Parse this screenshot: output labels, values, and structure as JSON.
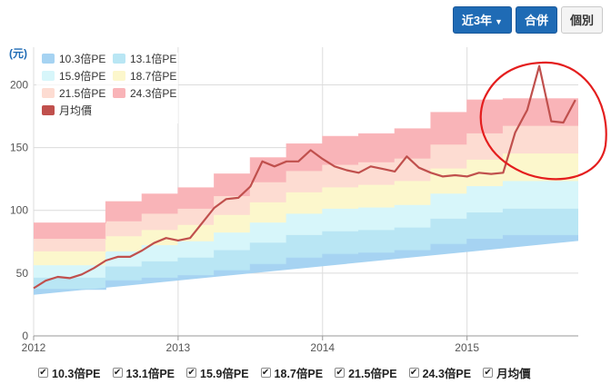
{
  "toolbar": {
    "range_label": "近3年",
    "consolidated_label": "合併",
    "individual_label": "個別"
  },
  "colors": {
    "pe_10_3": "#a6d3f2",
    "pe_13_1": "#b9e6f4",
    "pe_15_9": "#d7f6fa",
    "pe_18_7": "#fcf7cc",
    "pe_21_5": "#fddcd2",
    "pe_24_3": "#f9b4b8",
    "monthly_price": "#c0504d",
    "annotation": "#e41e1e"
  },
  "chart_data": {
    "type": "area",
    "ylabel": "(元)",
    "ylim": [
      0,
      230
    ],
    "yticks": [
      0,
      50,
      100,
      150,
      200
    ],
    "xlim": [
      2012.0,
      2015.77
    ],
    "xticks": [
      {
        "value": 2012,
        "label": "2012"
      },
      {
        "value": 2013,
        "label": "2013"
      },
      {
        "value": 2014,
        "label": "2014"
      },
      {
        "value": 2015,
        "label": "2015"
      }
    ],
    "grid": true,
    "legend_position": "top-left",
    "x": [
      2012.0,
      2012.083,
      2012.167,
      2012.25,
      2012.333,
      2012.417,
      2012.5,
      2012.583,
      2012.667,
      2012.75,
      2012.833,
      2012.917,
      2013.0,
      2013.083,
      2013.167,
      2013.25,
      2013.333,
      2013.417,
      2013.5,
      2013.583,
      2013.667,
      2013.75,
      2013.833,
      2013.917,
      2014.0,
      2014.083,
      2014.167,
      2014.25,
      2014.333,
      2014.417,
      2014.5,
      2014.583,
      2014.667,
      2014.75,
      2014.833,
      2014.917,
      2015.0,
      2015.083,
      2015.167,
      2015.25,
      2015.333,
      2015.417,
      2015.5,
      2015.583,
      2015.667,
      2015.75
    ],
    "series": [
      {
        "name": "10.3倍PE",
        "color_key": "pe_10_3",
        "values": [
          37,
          37,
          37,
          37,
          37,
          37,
          44,
          44,
          44,
          46,
          46,
          46,
          48,
          48,
          48,
          52,
          52,
          52,
          57,
          57,
          57,
          62,
          62,
          62,
          65,
          65,
          65,
          66,
          66,
          66,
          68,
          68,
          68,
          73,
          73,
          73,
          77,
          77,
          77,
          80,
          80,
          80,
          80,
          80,
          80,
          80
        ]
      },
      {
        "name": "13.1倍PE",
        "color_key": "pe_13_1",
        "values": [
          46,
          46,
          46,
          46,
          46,
          46,
          55,
          55,
          55,
          59,
          59,
          59,
          62,
          62,
          62,
          68,
          68,
          68,
          74,
          74,
          74,
          80,
          80,
          80,
          83,
          83,
          83,
          84,
          84,
          84,
          86,
          86,
          86,
          93,
          93,
          93,
          98,
          98,
          98,
          101,
          101,
          101,
          101,
          101,
          101,
          101
        ]
      },
      {
        "name": "15.9倍PE",
        "color_key": "pe_15_9",
        "values": [
          56,
          56,
          56,
          56,
          56,
          56,
          67,
          67,
          67,
          72,
          72,
          72,
          75,
          75,
          75,
          82,
          82,
          82,
          90,
          90,
          90,
          97,
          97,
          97,
          101,
          101,
          101,
          102,
          102,
          102,
          104,
          104,
          104,
          113,
          113,
          113,
          119,
          119,
          119,
          123,
          123,
          123,
          123,
          123,
          123,
          123
        ]
      },
      {
        "name": "18.7倍PE",
        "color_key": "pe_18_7",
        "values": [
          67,
          67,
          67,
          67,
          67,
          67,
          79,
          79,
          79,
          84,
          84,
          84,
          88,
          88,
          88,
          96,
          96,
          96,
          106,
          106,
          106,
          114,
          114,
          114,
          118,
          118,
          118,
          120,
          120,
          120,
          123,
          123,
          123,
          133,
          133,
          133,
          140,
          140,
          140,
          145,
          145,
          145,
          145,
          145,
          145,
          145
        ]
      },
      {
        "name": "21.5倍PE",
        "color_key": "pe_21_5",
        "values": [
          77,
          77,
          77,
          77,
          77,
          77,
          91,
          91,
          91,
          97,
          97,
          97,
          101,
          101,
          101,
          111,
          111,
          111,
          122,
          122,
          122,
          131,
          131,
          131,
          136,
          136,
          136,
          138,
          138,
          138,
          141,
          141,
          141,
          152,
          152,
          152,
          161,
          161,
          161,
          167,
          167,
          167,
          167,
          167,
          167,
          167
        ]
      },
      {
        "name": "24.3倍PE",
        "color_key": "pe_24_3",
        "values": [
          90,
          90,
          90,
          90,
          90,
          90,
          107,
          107,
          107,
          113,
          113,
          113,
          118,
          118,
          118,
          129,
          129,
          129,
          142,
          142,
          142,
          153,
          153,
          153,
          159,
          159,
          159,
          161,
          161,
          161,
          165,
          165,
          165,
          178,
          178,
          178,
          188,
          188,
          188,
          189,
          189,
          189,
          189,
          189,
          189,
          189
        ]
      },
      {
        "name": "月均價",
        "color_key": "monthly_price",
        "type": "line",
        "values": [
          38,
          44,
          47,
          46,
          49,
          54,
          60,
          63,
          63,
          68,
          74,
          78,
          76,
          78,
          90,
          102,
          109,
          110,
          119,
          139,
          135,
          139,
          139,
          148,
          141,
          135,
          132,
          130,
          135,
          133,
          131,
          143,
          134,
          130,
          127,
          128,
          127,
          130,
          129,
          130,
          162,
          180,
          215,
          171,
          170,
          188
        ]
      }
    ],
    "legend": [
      "10.3倍PE",
      "13.1倍PE",
      "15.9倍PE",
      "18.7倍PE",
      "21.5倍PE",
      "24.3倍PE",
      "月均價"
    ],
    "annotations": [
      {
        "type": "circle",
        "color_key": "annotation",
        "note": "hand-drawn circle around 2015 price spike"
      }
    ]
  }
}
